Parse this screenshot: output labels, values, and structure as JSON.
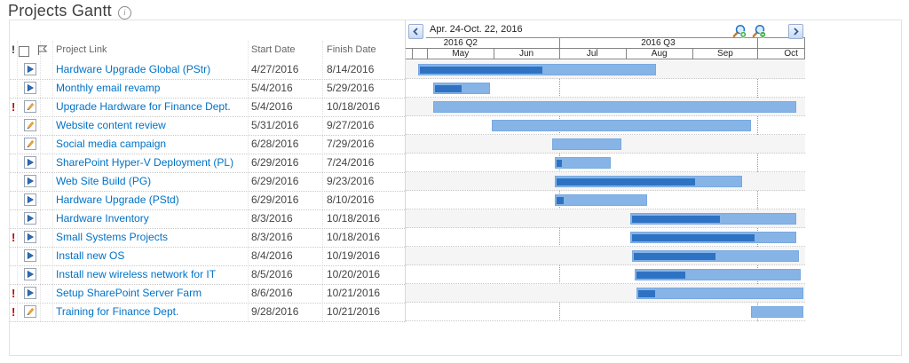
{
  "page": {
    "title": "Projects Gantt",
    "info_icon": "info"
  },
  "colors": {
    "link": "#0072c6",
    "alert": "#c00000",
    "bar_light": "#87b4e6",
    "bar_progress": "#2e72c3",
    "row_shade": "#f5f5f5",
    "grid_line": "#848484"
  },
  "icons": {
    "info": "info-icon",
    "checkbox": "select-all-checkbox",
    "flag": "flag-column-icon",
    "play": "in-progress-item-icon",
    "pencil": "edit-item-icon",
    "nav_left": "scroll-left-icon",
    "nav_right": "scroll-right-icon",
    "zoom_in": "zoom-in-icon",
    "zoom_out": "zoom-out-icon",
    "alert": "exclamation-icon"
  },
  "table": {
    "headers": {
      "alert": "!",
      "project": "Project Link",
      "start": "Start Date",
      "finish": "Finish Date"
    },
    "rows": [
      {
        "alert": false,
        "icon": "play",
        "name": "Hardware Upgrade Global (PStr)",
        "start": "4/27/2016",
        "finish": "8/14/2016",
        "progress": 0.52
      },
      {
        "alert": false,
        "icon": "play",
        "name": "Monthly email revamp",
        "start": "5/4/2016",
        "finish": "5/29/2016",
        "progress": 0.5
      },
      {
        "alert": true,
        "icon": "pencil",
        "name": "Upgrade Hardware for Finance Dept.",
        "start": "5/4/2016",
        "finish": "10/18/2016",
        "progress": 0
      },
      {
        "alert": false,
        "icon": "pencil",
        "name": "Website content review",
        "start": "5/31/2016",
        "finish": "9/27/2016",
        "progress": 0
      },
      {
        "alert": false,
        "icon": "pencil",
        "name": "Social media campaign",
        "start": "6/28/2016",
        "finish": "7/29/2016",
        "progress": 0
      },
      {
        "alert": false,
        "icon": "play",
        "name": "SharePoint Hyper-V Deployment (PL)",
        "start": "6/29/2016",
        "finish": "7/24/2016",
        "progress": 0.1
      },
      {
        "alert": false,
        "icon": "play",
        "name": "Web Site Build (PG)",
        "start": "6/29/2016",
        "finish": "9/23/2016",
        "progress": 0.75
      },
      {
        "alert": false,
        "icon": "play",
        "name": "Hardware Upgrade (PStd)",
        "start": "6/29/2016",
        "finish": "8/10/2016",
        "progress": 0.08
      },
      {
        "alert": false,
        "icon": "play",
        "name": "Hardware Inventory",
        "start": "8/3/2016",
        "finish": "10/18/2016",
        "progress": 0.54
      },
      {
        "alert": true,
        "icon": "play",
        "name": "Small Systems Projects",
        "start": "8/3/2016",
        "finish": "10/18/2016",
        "progress": 0.75
      },
      {
        "alert": false,
        "icon": "play",
        "name": "Install new OS",
        "start": "8/4/2016",
        "finish": "10/19/2016",
        "progress": 0.5
      },
      {
        "alert": false,
        "icon": "play",
        "name": "Install new wireless network for IT",
        "start": "8/5/2016",
        "finish": "10/20/2016",
        "progress": 0.3
      },
      {
        "alert": true,
        "icon": "play",
        "name": "Setup SharePoint Server Farm",
        "start": "8/6/2016",
        "finish": "10/21/2016",
        "progress": 0.1
      },
      {
        "alert": true,
        "icon": "pencil",
        "name": "Training for Finance Dept.",
        "start": "9/28/2016",
        "finish": "10/21/2016",
        "progress": 0
      }
    ]
  },
  "gantt": {
    "range_label": "Apr. 24-Oct. 22, 2016",
    "timeline": {
      "start": "4/24/2016",
      "end_exclusive": "10/23/2016"
    },
    "quarters": [
      {
        "label": "2016 Q2",
        "start": "4/1/2016",
        "end": "7/1/2016"
      },
      {
        "label": "2016 Q3",
        "start": "7/1/2016",
        "end": "10/1/2016"
      },
      {
        "label": "",
        "start": "10/1/2016",
        "end": "10/23/2016"
      }
    ],
    "months": [
      {
        "label": "",
        "start": "4/24/2016",
        "end": "5/1/2016"
      },
      {
        "label": "May",
        "start": "5/1/2016",
        "end": "6/1/2016"
      },
      {
        "label": "Jun",
        "start": "6/1/2016",
        "end": "7/1/2016"
      },
      {
        "label": "Jul",
        "start": "7/1/2016",
        "end": "8/1/2016"
      },
      {
        "label": "Aug",
        "start": "8/1/2016",
        "end": "9/1/2016"
      },
      {
        "label": "Sep",
        "start": "9/1/2016",
        "end": "10/1/2016"
      },
      {
        "label": "Oct",
        "start": "10/1/2016",
        "end": "11/1/2016"
      }
    ],
    "gridlines": [
      "7/1/2016",
      "10/1/2016"
    ]
  }
}
